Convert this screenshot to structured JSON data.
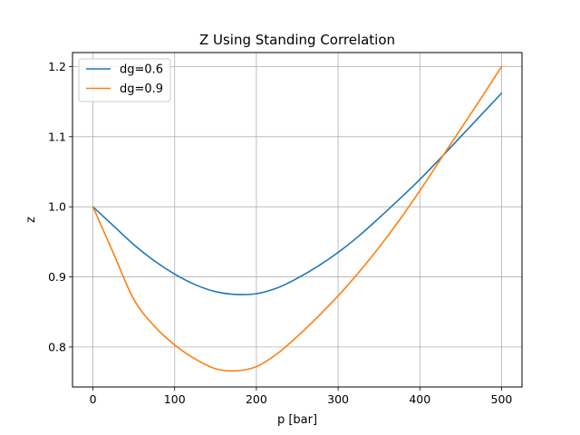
{
  "chart_data": {
    "type": "line",
    "title": "Z Using Standing Correlation",
    "xlabel": "p [bar]",
    "ylabel": "z",
    "xlim": [
      -25,
      525
    ],
    "ylim": [
      0.743,
      1.22
    ],
    "xticks": [
      0,
      100,
      200,
      300,
      400,
      500
    ],
    "xtick_labels": [
      "0",
      "100",
      "200",
      "300",
      "400",
      "500"
    ],
    "yticks": [
      0.8,
      0.9,
      1.0,
      1.1,
      1.2
    ],
    "ytick_labels": [
      "0.8",
      "0.9",
      "1.0",
      "1.1",
      "1.2"
    ],
    "grid": true,
    "legend_position": "top-left",
    "x": [
      0,
      25,
      50,
      75,
      100,
      125,
      150,
      175,
      200,
      225,
      250,
      275,
      300,
      325,
      350,
      375,
      400,
      425,
      450,
      475,
      500
    ],
    "series": [
      {
        "name": "dg=0.6",
        "color": "#1f77b4",
        "values": [
          1.0,
          0.973,
          0.946,
          0.923,
          0.904,
          0.889,
          0.879,
          0.875,
          0.876,
          0.884,
          0.898,
          0.915,
          0.935,
          0.958,
          0.984,
          1.011,
          1.039,
          1.069,
          1.1,
          1.131,
          1.162
        ]
      },
      {
        "name": "dg=0.9",
        "color": "#ff7f0e",
        "values": [
          1.0,
          0.934,
          0.868,
          0.83,
          0.803,
          0.783,
          0.769,
          0.766,
          0.772,
          0.79,
          0.815,
          0.843,
          0.873,
          0.906,
          0.942,
          0.981,
          1.023,
          1.067,
          1.111,
          1.155,
          1.2
        ]
      }
    ]
  }
}
